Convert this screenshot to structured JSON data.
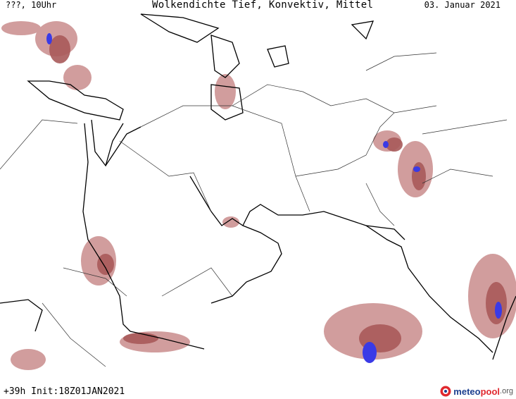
{
  "header": {
    "run_label": "???, 10Uhr",
    "title": "Wolkendichte  Tief, Konvektiv, Mittel",
    "date": "03. Januar 2021"
  },
  "footer": {
    "init_label": "+39h Init:18Z01JAN2021",
    "logo_main": "meteo",
    "logo_accent": "pool",
    "logo_suffix": ".org"
  },
  "colors": {
    "cloud_low": "#c98c8c",
    "cloud_mid": "#a85a5a",
    "cloud_high": "#3a3ae6",
    "coast": "#000000",
    "border": "#333333",
    "background": "#ffffff"
  }
}
